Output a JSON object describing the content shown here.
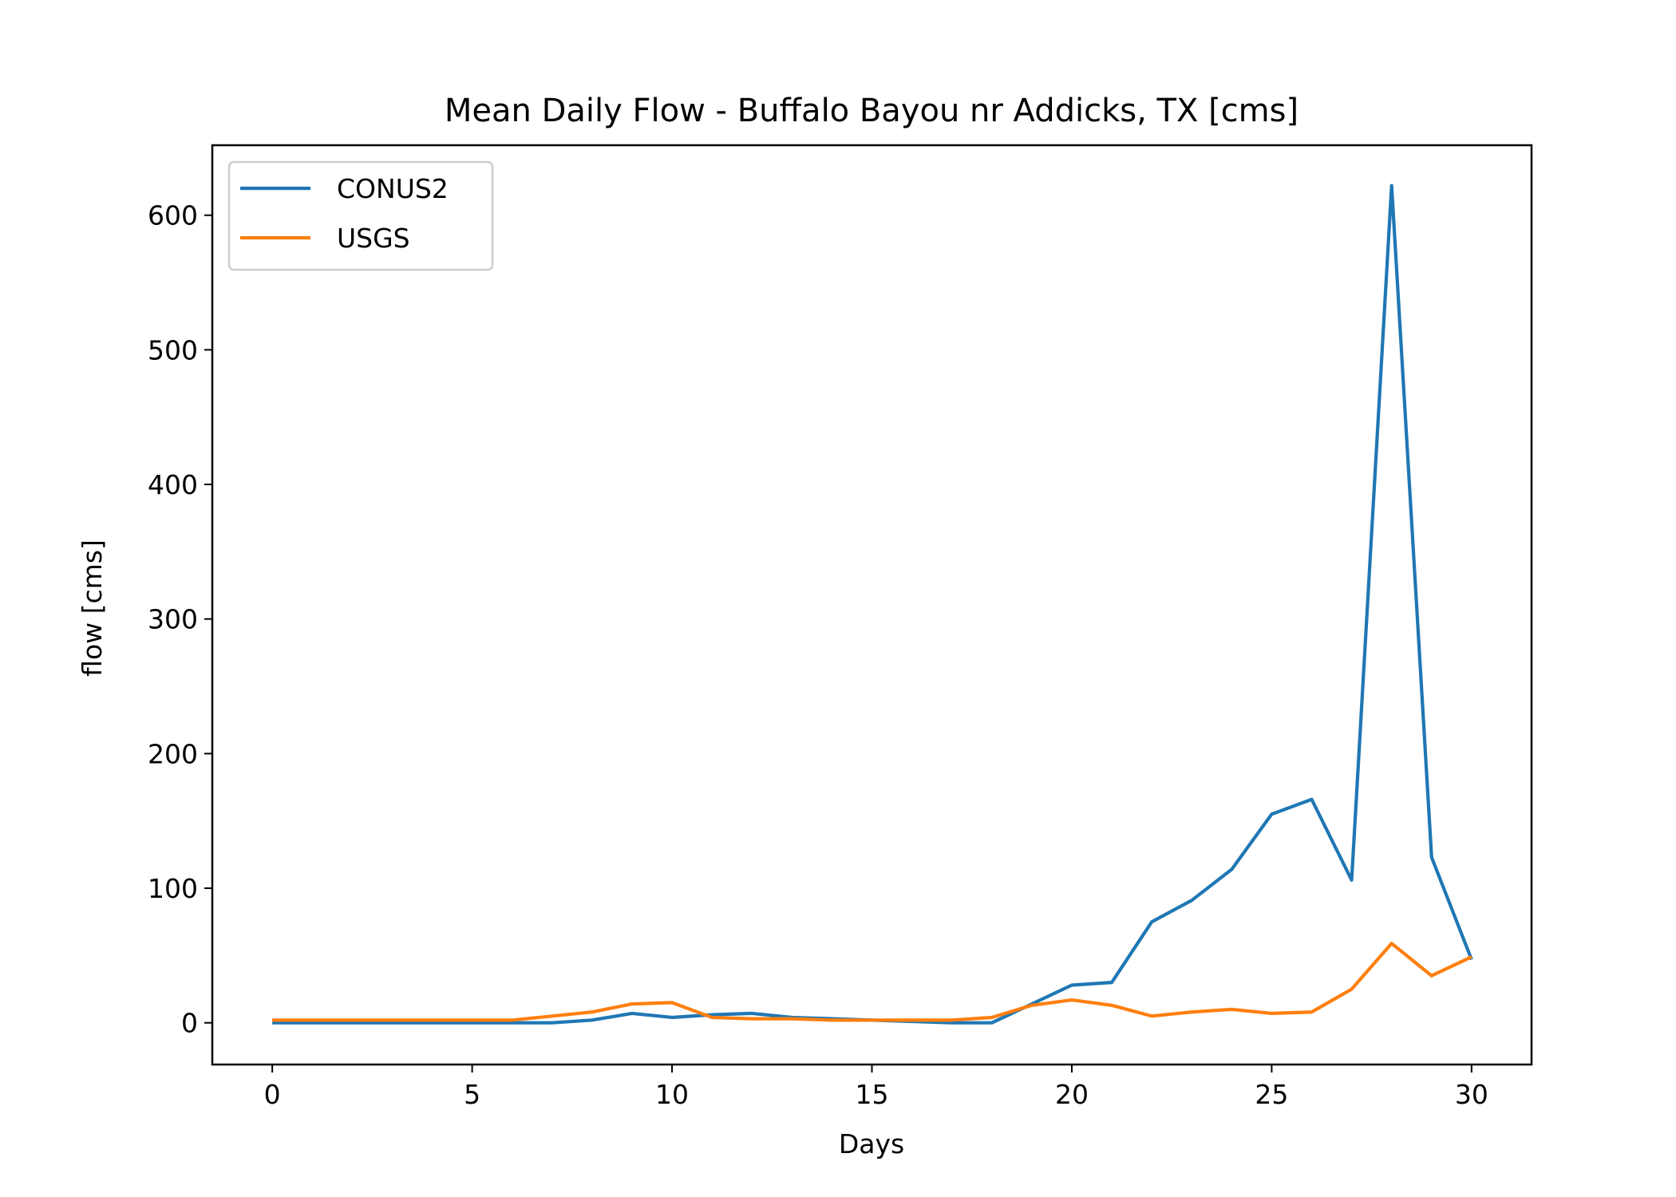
{
  "chart_data": {
    "type": "line",
    "title": "Mean Daily Flow - Buffalo Bayou nr Addicks, TX [cms]",
    "xlabel": "Days",
    "ylabel": "flow [cms]",
    "xlim": [
      -1.5,
      31.5
    ],
    "ylim": [
      -31,
      652
    ],
    "xticks": [
      0,
      5,
      10,
      15,
      20,
      25,
      30
    ],
    "yticks": [
      0,
      100,
      200,
      300,
      400,
      500,
      600
    ],
    "grid": false,
    "legend_position": "upper left",
    "x": [
      0,
      1,
      2,
      3,
      4,
      5,
      6,
      7,
      8,
      9,
      10,
      11,
      12,
      13,
      14,
      15,
      16,
      17,
      18,
      19,
      20,
      21,
      22,
      23,
      24,
      25,
      26,
      27,
      28,
      29,
      30
    ],
    "series": [
      {
        "name": "CONUS2",
        "color": "#1f77b4",
        "values": [
          0,
          0,
          0,
          0,
          0,
          0,
          0,
          0,
          2,
          7,
          4,
          6,
          7,
          4,
          3,
          2,
          1,
          0,
          0,
          14,
          28,
          30,
          75,
          91,
          114,
          155,
          166,
          106,
          622,
          123,
          47
        ]
      },
      {
        "name": "USGS",
        "color": "#ff7f0e",
        "values": [
          2,
          2,
          2,
          2,
          2,
          2,
          2,
          5,
          8,
          14,
          15,
          4,
          3,
          3,
          2,
          2,
          2,
          2,
          4,
          13,
          17,
          13,
          5,
          8,
          10,
          7,
          8,
          25,
          59,
          35,
          49
        ]
      }
    ]
  }
}
